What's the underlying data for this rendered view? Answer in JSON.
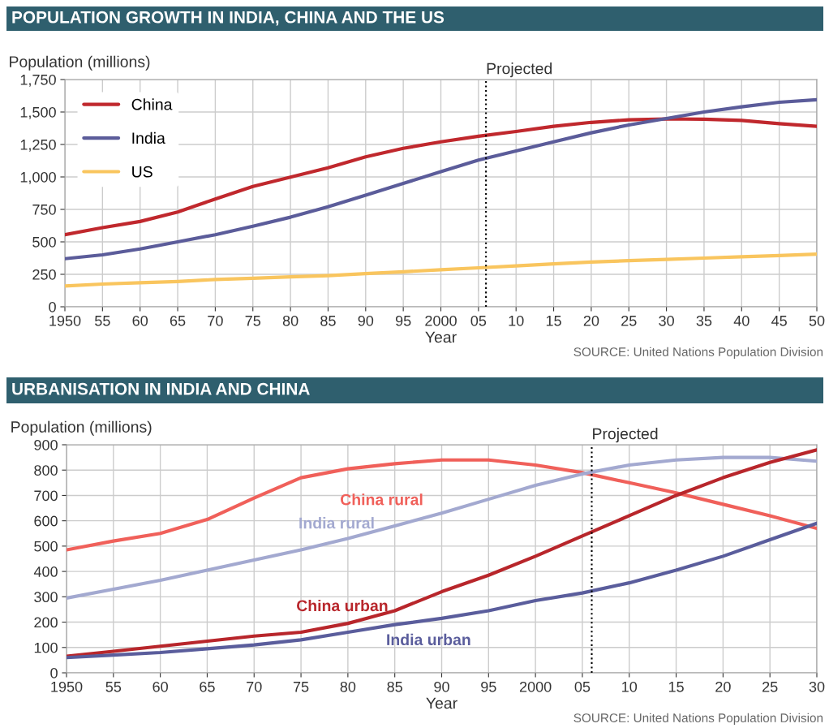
{
  "chart_data": [
    {
      "type": "line",
      "title": "POPULATION GROWTH IN INDIA, CHINA AND THE US",
      "ylabel": "Population (millions)",
      "xlabel": "Year",
      "x": [
        1950,
        1955,
        1960,
        1965,
        1970,
        1975,
        1980,
        1985,
        1990,
        1995,
        2000,
        2005,
        2010,
        2015,
        2020,
        2025,
        2030,
        2035,
        2040,
        2045,
        2050
      ],
      "series": [
        {
          "name": "China",
          "color": "#c0282d",
          "values": [
            555,
            609,
            657,
            730,
            830,
            927,
            998,
            1070,
            1155,
            1220,
            1270,
            1313,
            1350,
            1390,
            1420,
            1440,
            1447,
            1445,
            1435,
            1410,
            1390
          ]
        },
        {
          "name": "India",
          "color": "#5b5c9a",
          "values": [
            370,
            400,
            445,
            500,
            555,
            620,
            690,
            770,
            860,
            950,
            1040,
            1130,
            1200,
            1270,
            1340,
            1400,
            1450,
            1500,
            1540,
            1575,
            1595
          ]
        },
        {
          "name": "US",
          "color": "#f9c55e",
          "values": [
            160,
            175,
            185,
            195,
            210,
            220,
            230,
            240,
            255,
            270,
            285,
            300,
            315,
            330,
            345,
            355,
            365,
            375,
            385,
            395,
            405
          ]
        }
      ],
      "xlim": [
        1950,
        2050
      ],
      "xticks": [
        {
          "value": 1950,
          "label": "1950"
        },
        {
          "value": 1955,
          "label": "55"
        },
        {
          "value": 1960,
          "label": "60"
        },
        {
          "value": 1965,
          "label": "65"
        },
        {
          "value": 1970,
          "label": "70"
        },
        {
          "value": 1975,
          "label": "75"
        },
        {
          "value": 1980,
          "label": "80"
        },
        {
          "value": 1985,
          "label": "85"
        },
        {
          "value": 1990,
          "label": "90"
        },
        {
          "value": 1995,
          "label": "95"
        },
        {
          "value": 2000,
          "label": "2000"
        },
        {
          "value": 2005,
          "label": "05"
        },
        {
          "value": 2010,
          "label": "10"
        },
        {
          "value": 2015,
          "label": "15"
        },
        {
          "value": 2020,
          "label": "20"
        },
        {
          "value": 2025,
          "label": "25"
        },
        {
          "value": 2030,
          "label": "30"
        },
        {
          "value": 2035,
          "label": "35"
        },
        {
          "value": 2040,
          "label": "40"
        },
        {
          "value": 2045,
          "label": "45"
        },
        {
          "value": 2050,
          "label": "50"
        }
      ],
      "ylim": [
        0,
        1750
      ],
      "yticks": [
        0,
        250,
        500,
        750,
        {
          "value": 1000,
          "label": "1,000"
        },
        {
          "value": 1250,
          "label": "1,250"
        },
        {
          "value": 1500,
          "label": "1,500"
        },
        {
          "value": 1750,
          "label": "1,750"
        }
      ],
      "ref_lines": [
        {
          "axis": "x",
          "value": 2006,
          "label": "Projected",
          "color": "#000000",
          "line_style": "dotted"
        }
      ],
      "annotations": [
        "SOURCE: United Nations Population Division"
      ],
      "grid": true,
      "legend": "top left",
      "marker": "none",
      "line_style": "solid"
    },
    {
      "type": "line",
      "title": "URBANISATION IN INDIA AND CHINA",
      "ylabel": "Population (millions)",
      "xlabel": "Year",
      "x": [
        1950,
        1955,
        1960,
        1965,
        1970,
        1975,
        1980,
        1985,
        1990,
        1995,
        2000,
        2005,
        2010,
        2015,
        2020,
        2025,
        2030
      ],
      "series": [
        {
          "name": "China rural",
          "color": "#f0605a",
          "values": [
            485,
            520,
            550,
            605,
            690,
            770,
            805,
            825,
            840,
            840,
            820,
            790,
            750,
            710,
            665,
            620,
            570
          ]
        },
        {
          "name": "India rural",
          "color": "#a3a9d0",
          "values": [
            295,
            330,
            365,
            405,
            445,
            485,
            530,
            580,
            630,
            685,
            740,
            785,
            820,
            840,
            850,
            850,
            835
          ]
        },
        {
          "name": "China urban",
          "color": "#b8262b",
          "values": [
            65,
            85,
            105,
            125,
            145,
            160,
            195,
            245,
            320,
            385,
            460,
            540,
            620,
            700,
            770,
            830,
            880
          ]
        },
        {
          "name": "India urban",
          "color": "#5a5d9c",
          "values": [
            60,
            70,
            80,
            95,
            110,
            130,
            160,
            190,
            215,
            245,
            285,
            315,
            355,
            405,
            460,
            525,
            590
          ]
        }
      ],
      "xlim": [
        1950,
        2030
      ],
      "xticks": [
        {
          "value": 1950,
          "label": "1950"
        },
        {
          "value": 1955,
          "label": "55"
        },
        {
          "value": 1960,
          "label": "60"
        },
        {
          "value": 1965,
          "label": "65"
        },
        {
          "value": 1970,
          "label": "70"
        },
        {
          "value": 1975,
          "label": "75"
        },
        {
          "value": 1980,
          "label": "80"
        },
        {
          "value": 1985,
          "label": "85"
        },
        {
          "value": 1990,
          "label": "90"
        },
        {
          "value": 1995,
          "label": "95"
        },
        {
          "value": 2000,
          "label": "2000"
        },
        {
          "value": 2005,
          "label": "05"
        },
        {
          "value": 2010,
          "label": "10"
        },
        {
          "value": 2015,
          "label": "15"
        },
        {
          "value": 2020,
          "label": "20"
        },
        {
          "value": 2025,
          "label": "25"
        },
        {
          "value": 2030,
          "label": "30"
        }
      ],
      "ylim": [
        0,
        900
      ],
      "yticks": [
        0,
        100,
        200,
        300,
        400,
        500,
        600,
        700,
        800,
        900
      ],
      "ref_lines": [
        {
          "axis": "x",
          "value": 2006,
          "label": "Projected",
          "color": "#000000",
          "line_style": "dotted"
        }
      ],
      "annotations": [
        "SOURCE: United Nations Population Division"
      ],
      "grid": true,
      "legend": false,
      "marker": "none",
      "line_style": "solid"
    }
  ]
}
